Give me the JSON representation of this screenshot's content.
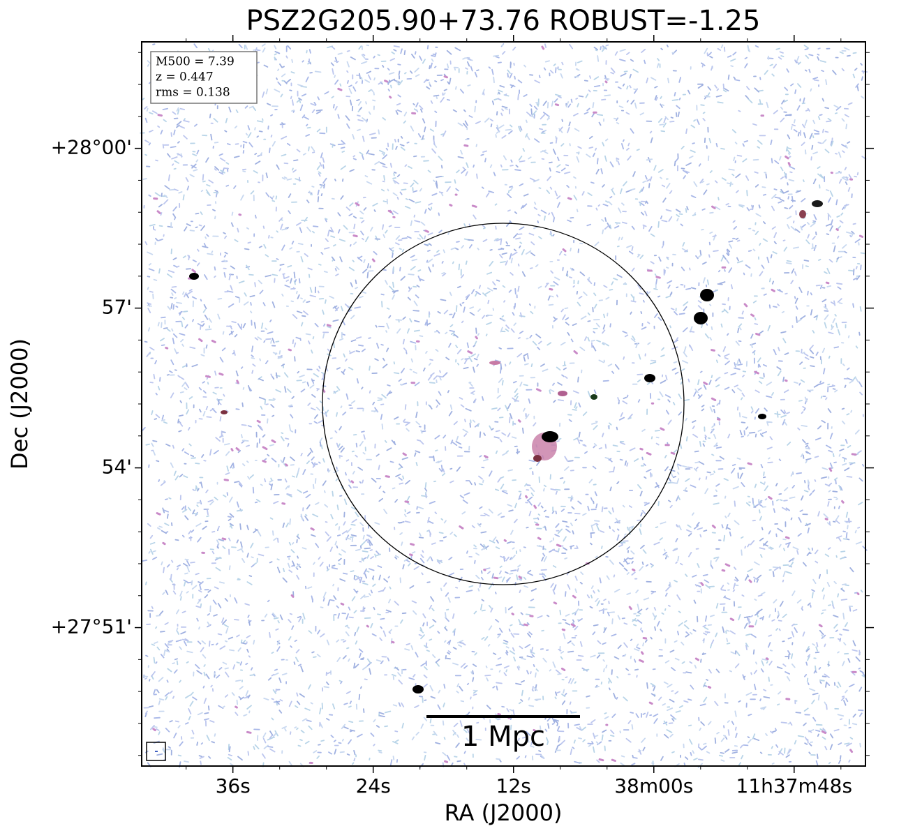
{
  "chart_data": {
    "type": "image",
    "title": "PSZ2G205.90+73.76 ROBUST=-1.25",
    "xlabel": "RA (J2000)",
    "ylabel": "Dec (J2000)",
    "xlim": [
      43.8,
      -18.1
    ],
    "xticks": [
      {
        "value": 36,
        "label": "36s"
      },
      {
        "value": 24,
        "label": "24s"
      },
      {
        "value": 12,
        "label": "12s"
      },
      {
        "value": 0,
        "label": "38m00s"
      },
      {
        "value": -12,
        "label": "11h37m48s"
      }
    ],
    "ylim": [
      48.4,
      62.0
    ],
    "yticks": [
      {
        "value": 60,
        "label": "+28°00'"
      },
      {
        "value": 57,
        "label": "57'"
      },
      {
        "value": 54,
        "label": "54'"
      },
      {
        "value": 51,
        "label": "+27°51'"
      }
    ],
    "annotations": [
      "M500 = 7.39",
      "z = 0.447",
      "rms = 0.138"
    ],
    "scalebar_label": "1 Mpc"
  }
}
